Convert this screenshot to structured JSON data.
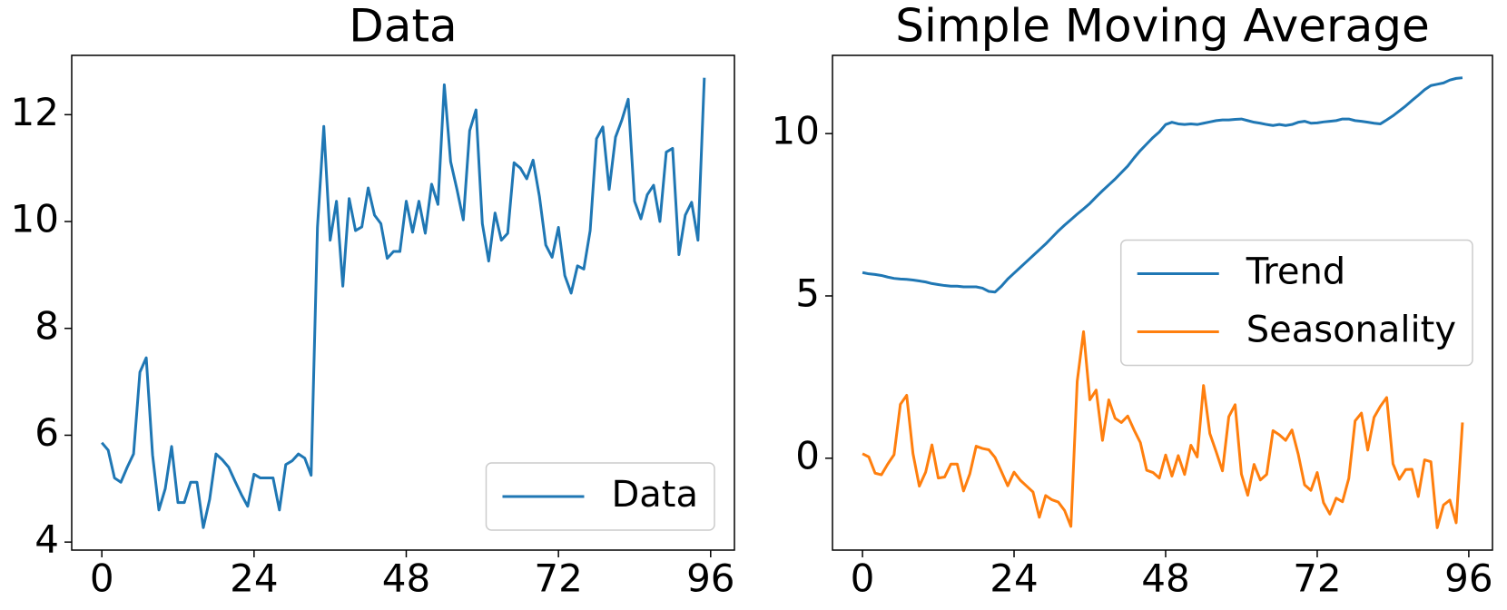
{
  "chart_data": [
    {
      "type": "line",
      "title": "Data",
      "x": [
        0,
        1,
        2,
        3,
        4,
        5,
        6,
        7,
        8,
        9,
        10,
        11,
        12,
        13,
        14,
        15,
        16,
        17,
        18,
        19,
        20,
        21,
        22,
        23,
        24,
        25,
        26,
        27,
        28,
        29,
        30,
        31,
        32,
        33,
        34,
        35,
        36,
        37,
        38,
        39,
        40,
        41,
        42,
        43,
        44,
        45,
        46,
        47,
        48,
        49,
        50,
        51,
        52,
        53,
        54,
        55,
        56,
        57,
        58,
        59,
        60,
        61,
        62,
        63,
        64,
        65,
        66,
        67,
        68,
        69,
        70,
        71,
        72,
        73,
        74,
        75,
        76,
        77,
        78,
        79,
        80,
        81,
        82,
        83,
        84,
        85,
        86,
        87,
        88,
        89,
        90,
        91,
        92,
        93,
        94,
        95
      ],
      "series": [
        {
          "name": "Data",
          "color": "#1f77b4",
          "values": [
            5.86,
            5.72,
            5.2,
            5.12,
            5.4,
            5.65,
            7.18,
            7.45,
            5.63,
            4.6,
            5.0,
            5.79,
            4.74,
            4.74,
            5.12,
            5.12,
            4.27,
            4.8,
            5.65,
            5.54,
            5.4,
            5.14,
            4.89,
            4.67,
            5.27,
            5.2,
            5.2,
            5.2,
            4.6,
            5.45,
            5.52,
            5.65,
            5.57,
            5.25,
            9.89,
            11.78,
            9.65,
            10.38,
            8.79,
            10.43,
            9.83,
            9.9,
            10.63,
            10.12,
            9.96,
            9.31,
            9.44,
            9.44,
            10.38,
            9.8,
            10.38,
            9.78,
            10.7,
            10.32,
            12.56,
            11.12,
            10.6,
            10.03,
            11.7,
            12.09,
            9.96,
            9.26,
            10.16,
            9.65,
            9.78,
            11.1,
            11.0,
            10.8,
            11.15,
            10.47,
            9.56,
            9.33,
            9.89,
            8.99,
            8.66,
            9.17,
            9.11,
            9.83,
            11.55,
            11.77,
            10.6,
            11.58,
            11.9,
            12.29,
            10.38,
            10.05,
            10.5,
            10.68,
            10.0,
            11.3,
            11.37,
            9.38,
            10.12,
            10.36,
            9.65,
            12.69
          ]
        }
      ],
      "xlim": [
        -4.75,
        99.75
      ],
      "xticks": [
        0,
        24,
        48,
        72,
        96
      ],
      "ylim": [
        3.85,
        13.11
      ],
      "yticks": [
        4,
        6,
        8,
        10,
        12
      ],
      "grid": false,
      "legend_loc": "lower right"
    },
    {
      "type": "line",
      "title": "Simple Moving Average",
      "x": [
        0,
        1,
        2,
        3,
        4,
        5,
        6,
        7,
        8,
        9,
        10,
        11,
        12,
        13,
        14,
        15,
        16,
        17,
        18,
        19,
        20,
        21,
        22,
        23,
        24,
        25,
        26,
        27,
        28,
        29,
        30,
        31,
        32,
        33,
        34,
        35,
        36,
        37,
        38,
        39,
        40,
        41,
        42,
        43,
        44,
        45,
        46,
        47,
        48,
        49,
        50,
        51,
        52,
        53,
        54,
        55,
        56,
        57,
        58,
        59,
        60,
        61,
        62,
        63,
        64,
        65,
        66,
        67,
        68,
        69,
        70,
        71,
        72,
        73,
        74,
        75,
        76,
        77,
        78,
        79,
        80,
        81,
        82,
        83,
        84,
        85,
        86,
        87,
        88,
        89,
        90,
        91,
        92,
        93,
        94,
        95
      ],
      "series": [
        {
          "name": "Trend",
          "color": "#1f77b4",
          "values": [
            5.72,
            5.68,
            5.66,
            5.63,
            5.58,
            5.54,
            5.52,
            5.51,
            5.49,
            5.46,
            5.43,
            5.38,
            5.35,
            5.32,
            5.3,
            5.3,
            5.28,
            5.28,
            5.28,
            5.24,
            5.14,
            5.12,
            5.3,
            5.52,
            5.7,
            5.88,
            6.06,
            6.24,
            6.42,
            6.6,
            6.8,
            7.0,
            7.18,
            7.35,
            7.52,
            7.68,
            7.85,
            8.05,
            8.24,
            8.42,
            8.6,
            8.8,
            9.0,
            9.25,
            9.48,
            9.68,
            9.88,
            10.05,
            10.28,
            10.35,
            10.3,
            10.28,
            10.3,
            10.28,
            10.32,
            10.36,
            10.4,
            10.42,
            10.42,
            10.44,
            10.45,
            10.4,
            10.35,
            10.32,
            10.28,
            10.25,
            10.28,
            10.25,
            10.28,
            10.35,
            10.38,
            10.32,
            10.33,
            10.36,
            10.38,
            10.4,
            10.45,
            10.45,
            10.4,
            10.38,
            10.35,
            10.32,
            10.3,
            10.42,
            10.55,
            10.7,
            10.85,
            11.02,
            11.18,
            11.35,
            11.48,
            11.52,
            11.56,
            11.65,
            11.7,
            11.72
          ]
        },
        {
          "name": "Seasonality",
          "color": "#ff7f0e",
          "values": [
            0.14,
            0.04,
            -0.46,
            -0.51,
            -0.18,
            0.11,
            1.66,
            1.94,
            0.14,
            -0.86,
            -0.43,
            0.41,
            -0.61,
            -0.58,
            -0.18,
            -0.18,
            -1.01,
            -0.48,
            0.37,
            0.3,
            0.26,
            0.02,
            -0.41,
            -0.85,
            -0.43,
            -0.68,
            -0.86,
            -1.04,
            -1.82,
            -1.15,
            -1.28,
            -1.35,
            -1.61,
            -2.1,
            2.37,
            3.9,
            1.8,
            2.1,
            0.55,
            1.8,
            1.23,
            1.1,
            1.3,
            0.87,
            0.48,
            -0.37,
            -0.44,
            -0.61,
            0.1,
            -0.55,
            0.08,
            -0.5,
            0.4,
            0.04,
            2.24,
            0.76,
            0.2,
            -0.39,
            1.28,
            1.65,
            -0.49,
            -1.14,
            -0.19,
            -0.67,
            -0.5,
            0.85,
            0.72,
            0.55,
            0.87,
            0.12,
            -0.82,
            -0.99,
            -0.44,
            -1.37,
            -1.72,
            -1.23,
            -1.34,
            -0.62,
            1.15,
            1.39,
            0.25,
            1.26,
            1.6,
            1.87,
            -0.17,
            -0.65,
            -0.35,
            -0.34,
            -1.18,
            -0.05,
            -0.11,
            -2.14,
            -1.44,
            -1.29,
            -1.99,
            1.1
          ]
        }
      ],
      "xlim": [
        -4.75,
        99.75
      ],
      "xticks": [
        0,
        24,
        48,
        72,
        96
      ],
      "ylim": [
        -2.83,
        12.41
      ],
      "yticks": [
        0,
        5,
        10
      ],
      "grid": false,
      "legend_loc": "center right"
    }
  ]
}
